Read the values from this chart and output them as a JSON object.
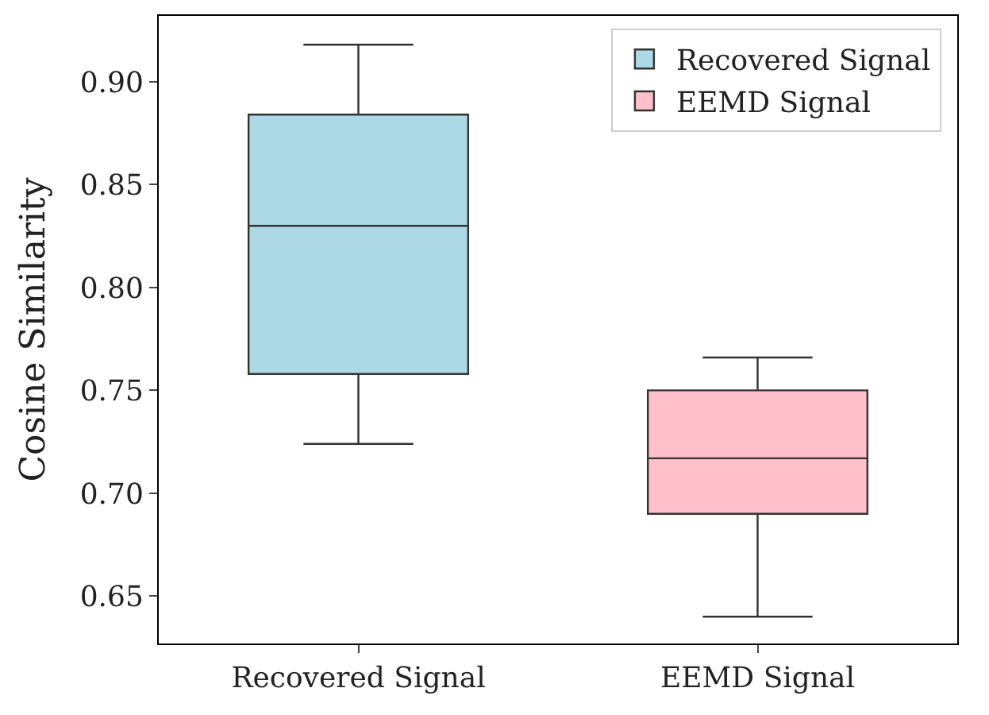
{
  "chart_data": {
    "type": "box",
    "ylabel": "Cosine Similarity",
    "categories": [
      "Recovered Signal",
      "EEMD Signal"
    ],
    "series": [
      {
        "name": "Recovered Signal",
        "color": "#add8e6",
        "boxes": [
          {
            "low": 0.724,
            "q1": 0.758,
            "median": 0.83,
            "q3": 0.884,
            "high": 0.918
          },
          null
        ]
      },
      {
        "name": "EEMD Signal",
        "color": "#ffc0cb",
        "boxes": [
          null,
          {
            "low": 0.64,
            "q1": 0.69,
            "median": 0.717,
            "q3": 0.75,
            "high": 0.766
          }
        ]
      }
    ],
    "ylim": [
      0.627,
      0.932
    ],
    "yticks": [
      0.65,
      {
        "value": 0.7,
        "label": "0.70"
      },
      0.75,
      {
        "value": 0.8,
        "label": "0.80"
      },
      0.85,
      {
        "value": 0.9,
        "label": "0.90"
      }
    ],
    "legend": "top right"
  }
}
